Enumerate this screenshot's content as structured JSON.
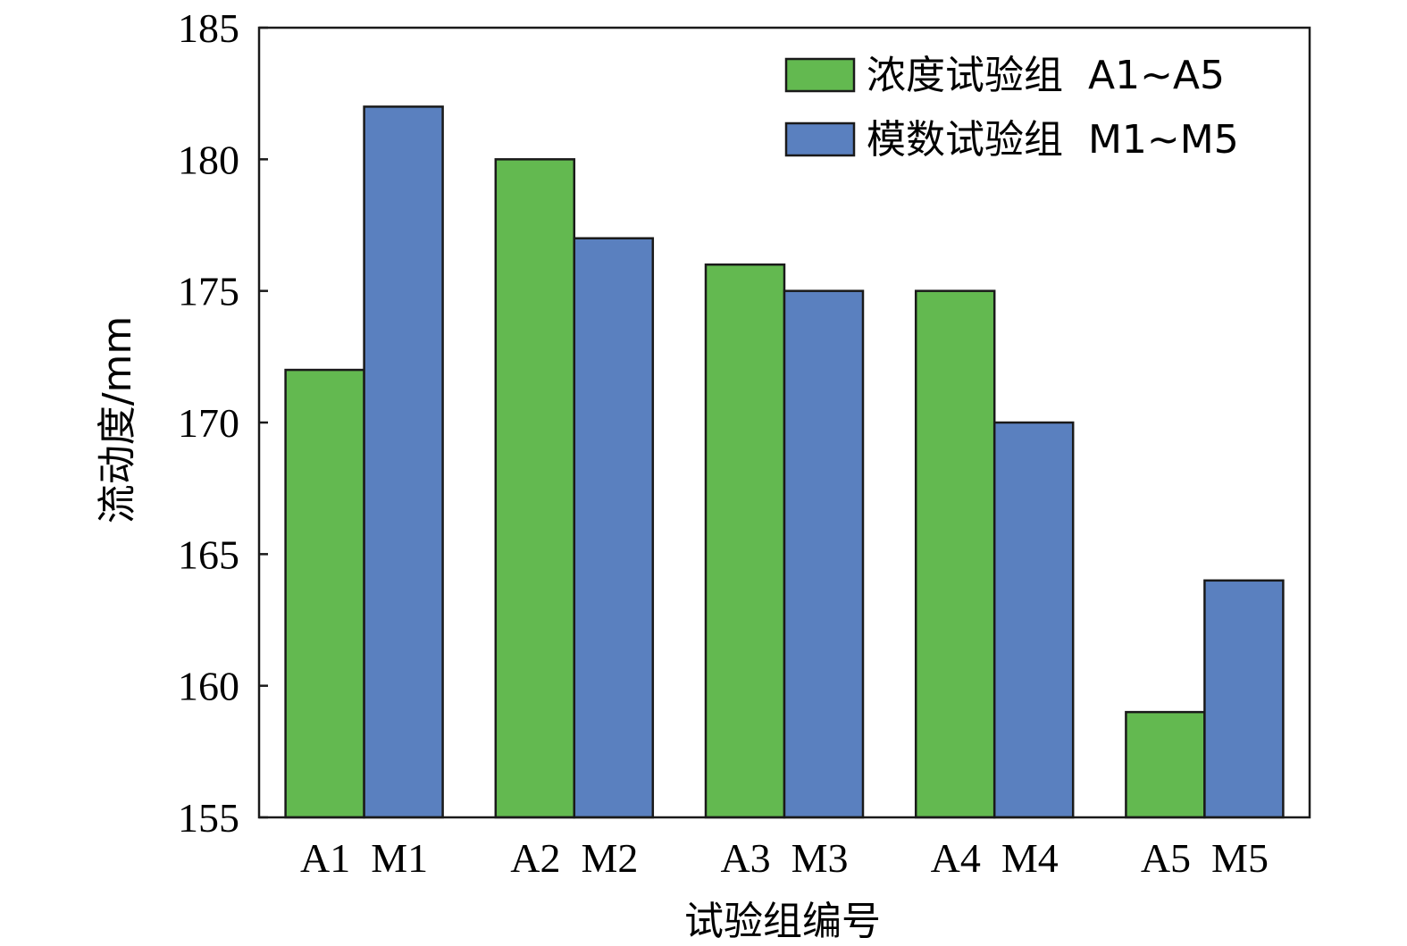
{
  "chart_data": {
    "type": "bar",
    "categories": [
      "A1  M1",
      "A2  M2",
      "A3  M3",
      "A4  M4",
      "A5  M5"
    ],
    "series": [
      {
        "name": "浓度试验组  A1~A5",
        "color": "#63b950",
        "values": [
          172,
          180,
          176,
          175,
          159
        ]
      },
      {
        "name": "模数试验组  M1~M5",
        "color": "#5a80bf",
        "values": [
          182,
          177,
          175,
          170,
          164
        ]
      }
    ],
    "xlabel": "试验组编号",
    "ylabel": "流动度/mm",
    "ylim": [
      155,
      185
    ],
    "yticks": [
      155,
      160,
      165,
      170,
      175,
      180,
      185
    ],
    "grid": false,
    "legend_position": "top-right"
  }
}
